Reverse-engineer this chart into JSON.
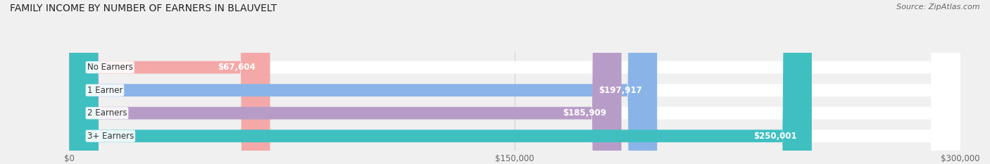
{
  "title": "FAMILY INCOME BY NUMBER OF EARNERS IN BLAUVELT",
  "source": "Source: ZipAtlas.com",
  "categories": [
    "No Earners",
    "1 Earner",
    "2 Earners",
    "3+ Earners"
  ],
  "values": [
    67604,
    197917,
    185909,
    250001
  ],
  "labels": [
    "$67,604",
    "$197,917",
    "$185,909",
    "$250,001"
  ],
  "bar_colors": [
    "#f4a9a8",
    "#8ab4e8",
    "#b89cc8",
    "#40bfc1"
  ],
  "background_color": "#f0f0f0",
  "xlim": [
    0,
    300000
  ],
  "xticks": [
    0,
    150000,
    300000
  ],
  "xtick_labels": [
    "$0",
    "$150,000",
    "$300,000"
  ],
  "title_fontsize": 10,
  "source_fontsize": 8,
  "label_fontsize": 8.5,
  "category_fontsize": 8.5
}
